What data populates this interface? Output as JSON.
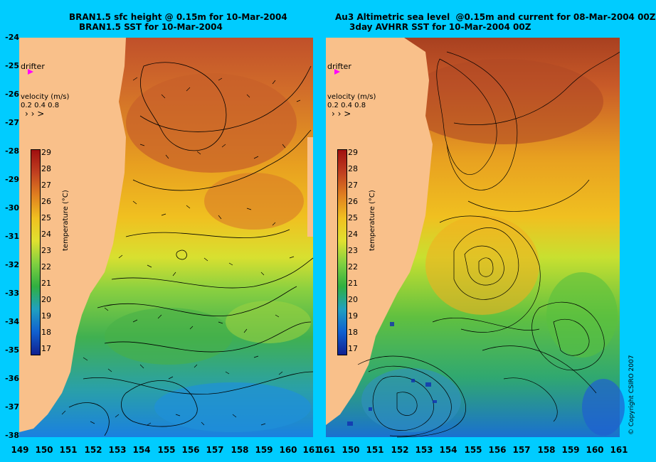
{
  "left_panel": {
    "title_line1": "BRAN1.5 sfc height @ 0.15m for 10-Mar-2004",
    "title_line2": "BRAN1.5 SST for 10-Mar-2004",
    "drifter_label": "drifter",
    "velocity_label": "velocity (m/s)",
    "velocity_scale": "0.2 0.4 0.8",
    "colorbar_label": "temperature (°C)"
  },
  "right_panel": {
    "title_line1": "Au3 Altimetric sea level  @0.15m and current for 08-Mar-2004 00Z",
    "title_line2": "3day AVHRR SST for 10-Mar-2004 00Z",
    "drifter_label": "drifter",
    "velocity_label": "velocity (m/s)",
    "velocity_scale": "0.2 0.4 0.8",
    "colorbar_label": "temperature (°C)"
  },
  "y_axis_ticks": [
    "-24",
    "-25",
    "-26",
    "-27",
    "-28",
    "-29",
    "-30",
    "-31",
    "-32",
    "-33",
    "-34",
    "-35",
    "-36",
    "-37",
    "-38"
  ],
  "x_axis_ticks": [
    "149",
    "150",
    "151",
    "152",
    "153",
    "154",
    "155",
    "156",
    "157",
    "158",
    "159",
    "160",
    "161",
    "161",
    "150",
    "151",
    "152",
    "153",
    "154",
    "155",
    "156",
    "157",
    "158",
    "159",
    "160",
    "161"
  ],
  "colorbar_ticks": [
    "29",
    "28",
    "27",
    "26",
    "25",
    "24",
    "23",
    "22",
    "21",
    "20",
    "19",
    "18",
    "17"
  ],
  "copyright": "© Copyright CSIRO 2007",
  "colors": {
    "background": "#00ccff",
    "land": "#f9c08a",
    "sst_warm": "#c0502a",
    "sst_orange": "#e8a020",
    "sst_yellow": "#e8e020",
    "sst_green": "#4ab84a",
    "sst_cool": "#1aa0e0",
    "drifter": "#ff00ff"
  }
}
